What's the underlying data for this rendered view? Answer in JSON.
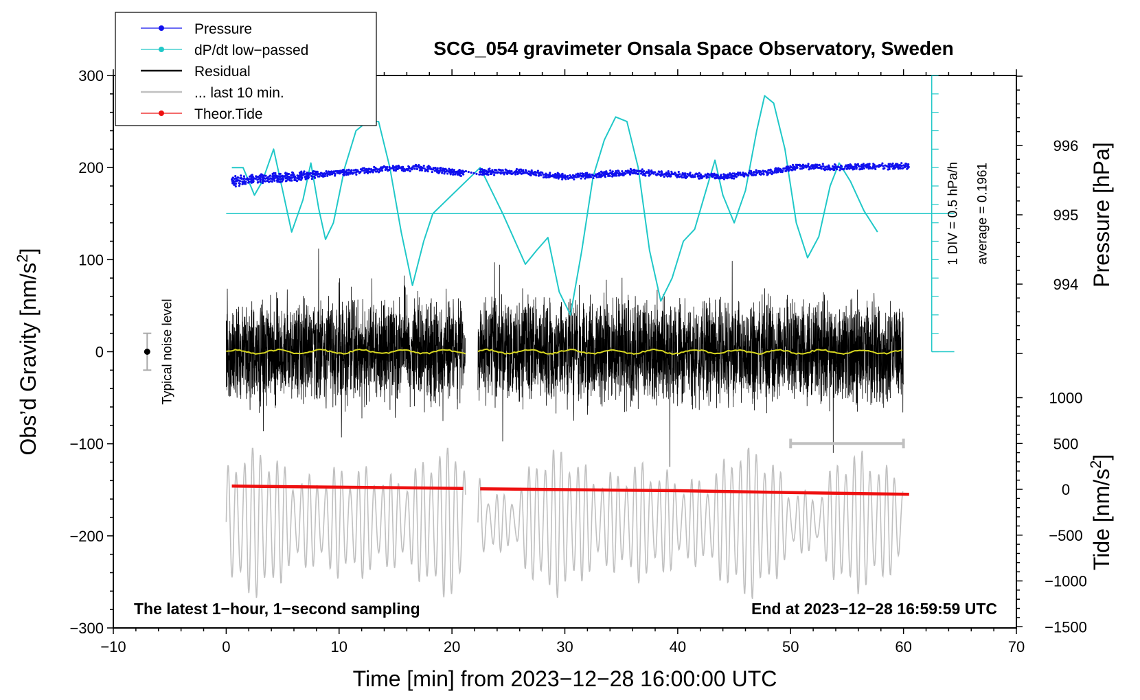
{
  "chart_data": {
    "type": "line",
    "title": "SCG_054 gravimeter Onsala Space Observatory, Sweden",
    "xlabel": "Time [min] from 2023−12−28 16:00:00 UTC",
    "ylabel_main": "Obs’d Gravity [nm/s",
    "ylabel_sup": "2",
    "ylabel_close": "]",
    "ylabel_pressure": "Pressure [hPa]",
    "ylabel_tide_main": "Tide [nm/s",
    "ylabel_tide_sup": "2",
    "ylabel_tide_close": "]",
    "xlim": [
      -10,
      70
    ],
    "ylim": [
      -300,
      300
    ],
    "pressure_lim": [
      993.0,
      997.0
    ],
    "tide_lim": [
      -1500,
      1500
    ],
    "x_ticks": [
      -10,
      0,
      10,
      20,
      30,
      40,
      50,
      60,
      70
    ],
    "x_tick_labels": [
      "−10",
      "0",
      "10",
      "20",
      "30",
      "40",
      "50",
      "60",
      "70"
    ],
    "y_ticks": [
      300,
      200,
      100,
      0,
      -100,
      -200,
      -300
    ],
    "y_tick_labels": [
      "300",
      "200",
      "100",
      "0",
      "−100",
      "−200",
      "−300"
    ],
    "pressure_ticks": [
      996,
      995,
      994
    ],
    "pressure_tick_labels": [
      "996",
      "995",
      "994"
    ],
    "tide_ticks": [
      1000,
      500,
      0,
      -500,
      -1000,
      -1500
    ],
    "tide_tick_labels": [
      "1000",
      "500",
      "0",
      "−500",
      "−1000",
      "−1500"
    ],
    "legend": {
      "position": "top-left",
      "items": [
        {
          "label": "Pressure",
          "color": "#1010ee",
          "marker": true
        },
        {
          "label": "dP/dt low−passed",
          "color": "#20c8c8",
          "marker": true
        },
        {
          "label": "Residual",
          "color": "#000000",
          "marker": false
        },
        {
          "label": "... last 10 min.",
          "color": "#c0c0c0",
          "marker": false
        },
        {
          "label": "Theor.Tide",
          "color": "#ee1010",
          "marker": true
        }
      ]
    },
    "series": [
      {
        "name": "Pressure",
        "axis": "pressure",
        "color": "#1010ee",
        "points": [
          [
            0.5,
            995.48
          ],
          [
            3,
            995.52
          ],
          [
            6,
            995.55
          ],
          [
            10,
            995.6
          ],
          [
            13,
            995.65
          ],
          [
            17,
            995.68
          ],
          [
            21,
            995.6
          ],
          [
            22.5,
            995.62
          ],
          [
            26,
            995.62
          ],
          [
            30,
            995.55
          ],
          [
            33,
            995.58
          ],
          [
            36,
            995.62
          ],
          [
            40,
            995.58
          ],
          [
            44,
            995.55
          ],
          [
            48,
            995.62
          ],
          [
            51,
            995.7
          ],
          [
            54,
            995.68
          ],
          [
            57,
            995.7
          ],
          [
            60.5,
            995.7
          ]
        ]
      },
      {
        "name": "dP/dt low-passed",
        "axis": "gravity",
        "color": "#20c8c8",
        "points": [
          [
            0.5,
            200
          ],
          [
            1.5,
            200
          ],
          [
            2.5,
            170
          ],
          [
            3.2,
            185
          ],
          [
            4.2,
            220
          ],
          [
            5,
            175
          ],
          [
            5.8,
            130
          ],
          [
            6.8,
            165
          ],
          [
            7.5,
            205
          ],
          [
            8.2,
            155
          ],
          [
            8.8,
            122
          ],
          [
            9.5,
            140
          ],
          [
            10.5,
            200
          ],
          [
            11.5,
            240
          ],
          [
            12.5,
            250
          ],
          [
            13.5,
            250
          ],
          [
            14.5,
            200
          ],
          [
            15.5,
            130
          ],
          [
            16.5,
            72
          ],
          [
            17.5,
            120
          ],
          [
            18.3,
            150
          ],
          [
            22.5,
            200
          ],
          [
            24.5,
            150
          ],
          [
            26.5,
            95
          ],
          [
            27.5,
            110
          ],
          [
            28.5,
            124
          ],
          [
            29.5,
            65
          ],
          [
            30.5,
            40
          ],
          [
            31.5,
            110
          ],
          [
            32.5,
            190
          ],
          [
            33.5,
            230
          ],
          [
            34.5,
            255
          ],
          [
            35.5,
            250
          ],
          [
            36.5,
            200
          ],
          [
            37.5,
            110
          ],
          [
            38.5,
            55
          ],
          [
            39.5,
            80
          ],
          [
            40.5,
            120
          ],
          [
            41.5,
            133
          ],
          [
            42.5,
            175
          ],
          [
            43.3,
            208
          ],
          [
            44,
            170
          ],
          [
            45,
            140
          ],
          [
            46,
            175
          ],
          [
            47,
            240
          ],
          [
            47.7,
            278
          ],
          [
            48.5,
            270
          ],
          [
            49.5,
            220
          ],
          [
            50.5,
            140
          ],
          [
            51.5,
            102
          ],
          [
            52.5,
            125
          ],
          [
            53.5,
            180
          ],
          [
            54.3,
            205
          ],
          [
            55.3,
            185
          ],
          [
            56.5,
            153
          ],
          [
            57.7,
            130
          ]
        ]
      },
      {
        "name": "Residual",
        "axis": "gravity",
        "color": "#000000",
        "segments": [
          [
            0,
            21.2
          ],
          [
            22.3,
            60
          ]
        ],
        "envelope": [
          -125,
          125
        ]
      },
      {
        "name": "... last 10 min.",
        "axis": "gravity",
        "color": "#c0c0c0",
        "segments": [
          [
            0,
            21.2
          ],
          [
            22.3,
            60
          ]
        ],
        "baseline": -185,
        "envelope": [
          -280,
          -105
        ]
      },
      {
        "name": "Theor.Tide",
        "axis": "tide",
        "color": "#ee1010",
        "points": [
          [
            0.5,
            35
          ],
          [
            21,
            10
          ],
          [
            22.5,
            5
          ],
          [
            40,
            -15
          ],
          [
            50,
            -35
          ],
          [
            60.5,
            -55
          ]
        ]
      }
    ],
    "annotations": {
      "hline_value": 150,
      "scale_bar_label": "1 DIV = 0.5 hPa/h",
      "average_label": "average = 0.1961",
      "noise_label": "Typical noise level",
      "noise_range": [
        -20,
        20
      ],
      "last10_range": [
        50,
        60
      ],
      "footer_left": "The latest 1−hour, 1−second sampling",
      "footer_right": "End at 2023−12−28 16:59:59 UTC"
    }
  }
}
